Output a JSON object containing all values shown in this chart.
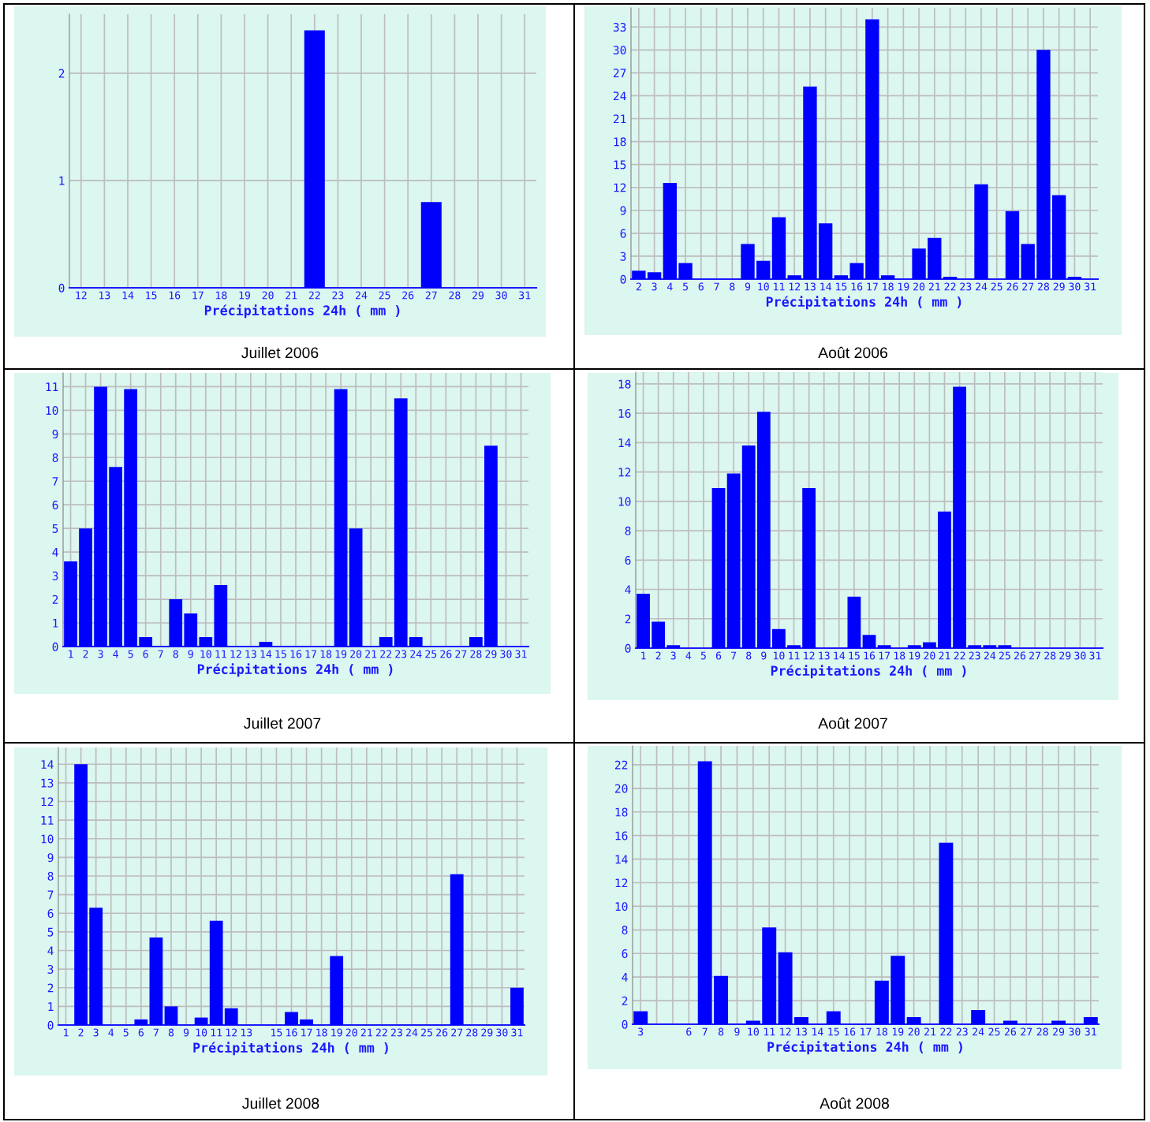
{
  "chart_data": [
    {
      "type": "bar",
      "title": "Juillet 2006",
      "xlabel": "Précipitations 24h ( mm )",
      "color": "#0000ff",
      "grid": true,
      "ylim": [
        0,
        2.55
      ],
      "yticks": [
        0,
        1,
        2
      ],
      "categories": [
        "12",
        "13",
        "14",
        "15",
        "16",
        "17",
        "18",
        "19",
        "20",
        "21",
        "22",
        "23",
        "24",
        "25",
        "26",
        "27",
        "28",
        "29",
        "30",
        "31"
      ],
      "values": [
        0,
        0,
        0,
        0,
        0,
        0,
        0,
        0,
        0,
        0,
        2.4,
        0,
        0,
        0,
        0,
        0.8,
        0,
        0,
        0,
        0
      ]
    },
    {
      "type": "bar",
      "title": "Août 2006",
      "xlabel": "Précipitations 24h ( mm )",
      "color": "#0000ff",
      "grid": true,
      "ylim": [
        0,
        35.5
      ],
      "yticks": [
        0,
        3,
        6,
        9,
        12,
        15,
        18,
        21,
        24,
        27,
        30,
        33
      ],
      "categories": [
        "2",
        "3",
        "4",
        "5",
        "6",
        "7",
        "8",
        "9",
        "10",
        "11",
        "12",
        "13",
        "14",
        "15",
        "16",
        "17",
        "18",
        "19",
        "20",
        "21",
        "22",
        "23",
        "24",
        "25",
        "26",
        "27",
        "28",
        "29",
        "30",
        "31"
      ],
      "values": [
        1.1,
        0.9,
        12.6,
        2.1,
        0,
        0,
        0,
        4.6,
        2.4,
        8.1,
        0.5,
        25.2,
        7.3,
        0.5,
        2.1,
        34.0,
        0.5,
        0,
        4.0,
        5.4,
        0.3,
        0,
        12.4,
        0,
        8.9,
        4.6,
        30.0,
        11.0,
        0.3,
        0
      ]
    },
    {
      "type": "bar",
      "title": "Juillet 2007",
      "xlabel": "Précipitations 24h ( mm )",
      "color": "#0000ff",
      "grid": true,
      "ylim": [
        0,
        11.58
      ],
      "yticks": [
        0,
        1,
        2,
        3,
        4,
        5,
        6,
        7,
        8,
        9,
        10,
        11
      ],
      "categories": [
        "1",
        "2",
        "3",
        "4",
        "5",
        "6",
        "7",
        "8",
        "9",
        "10",
        "11",
        "12",
        "13",
        "14",
        "15",
        "16",
        "17",
        "18",
        "19",
        "20",
        "21",
        "22",
        "23",
        "24",
        "25",
        "26",
        "27",
        "28",
        "29",
        "30",
        "31"
      ],
      "values": [
        3.6,
        5.0,
        11.0,
        7.6,
        10.9,
        0.4,
        0,
        2.0,
        1.4,
        0.4,
        2.6,
        0,
        0,
        0.2,
        0,
        0,
        0,
        0,
        10.9,
        5.0,
        0,
        0.4,
        10.5,
        0.4,
        0,
        0,
        0,
        0.4,
        8.5,
        0,
        0
      ]
    },
    {
      "type": "bar",
      "title": "Août 2007",
      "xlabel": "Précipitations 24h ( mm )",
      "color": "#0000ff",
      "grid": true,
      "ylim": [
        0,
        18.8
      ],
      "yticks": [
        0,
        2,
        4,
        6,
        8,
        10,
        12,
        14,
        16,
        18
      ],
      "categories": [
        "1",
        "2",
        "3",
        "4",
        "5",
        "6",
        "7",
        "8",
        "9",
        "10",
        "11",
        "12",
        "13",
        "14",
        "15",
        "16",
        "17",
        "18",
        "19",
        "20",
        "21",
        "22",
        "23",
        "24",
        "25",
        "26",
        "27",
        "28",
        "29",
        "30",
        "31"
      ],
      "values": [
        3.7,
        1.8,
        0.2,
        0,
        0,
        10.9,
        11.9,
        13.8,
        16.1,
        1.3,
        0.2,
        10.9,
        0,
        0,
        3.5,
        0.9,
        0.2,
        0,
        0.2,
        0.4,
        9.3,
        17.8,
        0.2,
        0.2,
        0.2,
        0,
        0,
        0,
        0,
        0,
        0
      ]
    },
    {
      "type": "bar",
      "title": "Juillet 2008",
      "xlabel": "Précipitations 24h ( mm )",
      "color": "#0000ff",
      "grid": true,
      "ylim": [
        0,
        14.9
      ],
      "yticks": [
        0,
        1,
        2,
        3,
        4,
        5,
        6,
        7,
        8,
        9,
        10,
        11,
        12,
        13,
        14
      ],
      "categories": [
        "1",
        "2",
        "3",
        "4",
        "5",
        "6",
        "7",
        "8",
        "9",
        "10",
        "11",
        "12",
        "13",
        null,
        "15",
        "16",
        "17",
        "18",
        "19",
        "20",
        "21",
        "22",
        "23",
        "24",
        "25",
        "26",
        "27",
        "28",
        "29",
        "30",
        "31"
      ],
      "values": [
        0,
        14.0,
        6.3,
        0,
        0,
        0.3,
        4.7,
        1.0,
        0,
        0.4,
        5.6,
        0.9,
        0,
        0,
        0,
        0.7,
        0.3,
        0,
        3.7,
        0,
        0,
        0,
        0,
        0,
        0,
        0,
        8.1,
        0,
        0,
        0,
        2.0
      ]
    },
    {
      "type": "bar",
      "title": "Août 2008",
      "xlabel": "Précipitations 24h ( mm )",
      "color": "#0000ff",
      "grid": true,
      "ylim": [
        0,
        23.6
      ],
      "yticks": [
        0,
        2,
        4,
        6,
        8,
        10,
        12,
        14,
        16,
        18,
        20,
        22
      ],
      "categories": [
        "3",
        null,
        null,
        "6",
        "7",
        "8",
        "9",
        "10",
        "11",
        "12",
        "13",
        "14",
        "15",
        "16",
        "17",
        "18",
        "19",
        "20",
        "21",
        "22",
        "23",
        "24",
        "25",
        "26",
        "27",
        "28",
        "29",
        "30",
        "31"
      ],
      "values": [
        1.1,
        0,
        0,
        0,
        22.3,
        4.1,
        0,
        0.3,
        8.2,
        6.1,
        0.6,
        0,
        1.1,
        0,
        0,
        3.7,
        5.8,
        0.6,
        0,
        15.4,
        0,
        1.2,
        0,
        0.3,
        0,
        0,
        0.3,
        0,
        0.6
      ]
    }
  ]
}
